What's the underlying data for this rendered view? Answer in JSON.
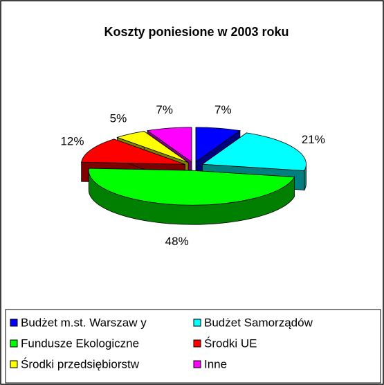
{
  "chart_data": {
    "type": "pie3d",
    "title": "Koszty poniesione w 2003 roku",
    "categories": [
      "Budżet m.st. Warszaw y",
      "Budżet Samorządów",
      "Fundusze Ekologiczne",
      "Środki UE",
      "Środki przedsiębiorstw",
      "Inne"
    ],
    "values": [
      7,
      21,
      48,
      12,
      5,
      7
    ],
    "value_labels": [
      "7%",
      "21%",
      "48%",
      "12%",
      "5%",
      "7%"
    ],
    "colors": [
      "#0000ff",
      "#00ffff",
      "#00ff00",
      "#ff0000",
      "#ffff00",
      "#ff00ff"
    ],
    "legend": "bottom"
  }
}
